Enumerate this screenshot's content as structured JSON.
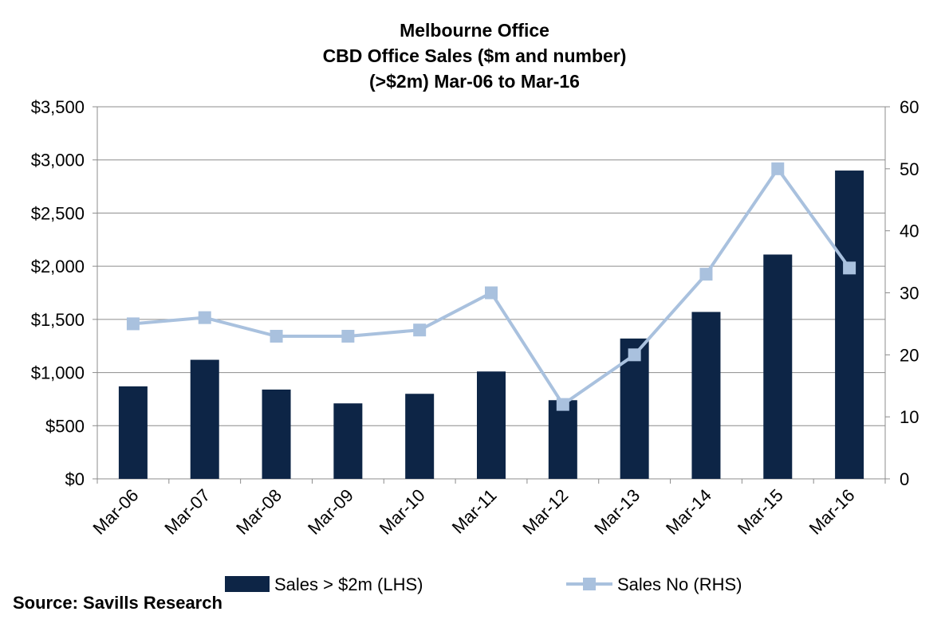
{
  "chart_data": {
    "type": "bar",
    "title_lines": [
      "Melbourne Office",
      "CBD Office Sales ($m and number)",
      "(>$2m) Mar-06 to Mar-16"
    ],
    "categories": [
      "Mar-06",
      "Mar-07",
      "Mar-08",
      "Mar-09",
      "Mar-10",
      "Mar-11",
      "Mar-12",
      "Mar-13",
      "Mar-14",
      "Mar-15",
      "Mar-16"
    ],
    "series": [
      {
        "name": "Sales > $2m (LHS)",
        "type": "bar",
        "axis": "left",
        "color": "#0d2546",
        "values": [
          870,
          1120,
          840,
          710,
          800,
          1010,
          740,
          1320,
          1570,
          2110,
          2900
        ]
      },
      {
        "name": "Sales No (RHS)",
        "type": "line",
        "axis": "right",
        "color": "#a9c1de",
        "values": [
          25,
          26,
          23,
          23,
          24,
          30,
          12,
          20,
          33,
          50,
          34
        ]
      }
    ],
    "y_left": {
      "ylim": [
        0,
        3500
      ],
      "ticks": [
        0,
        500,
        1000,
        1500,
        2000,
        2500,
        3000,
        3500
      ],
      "tick_labels": [
        "$0",
        "$500",
        "$1,000",
        "$1,500",
        "$2,000",
        "$2,500",
        "$3,000",
        "$3,500"
      ]
    },
    "y_right": {
      "ylim": [
        0,
        60
      ],
      "ticks": [
        0,
        10,
        20,
        30,
        40,
        50,
        60
      ],
      "tick_labels": [
        "0",
        "10",
        "20",
        "30",
        "40",
        "50",
        "60"
      ]
    },
    "grid": true,
    "legend_position": "bottom"
  },
  "source": "Source: Savills Research"
}
